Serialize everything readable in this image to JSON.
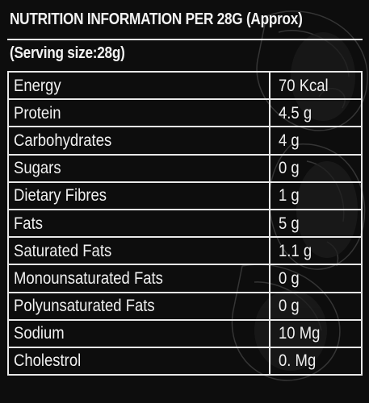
{
  "header": {
    "title": "NUTRITION INFORMATION PER 28G (Approx)",
    "serving": "(Serving size:28g)"
  },
  "rows": [
    {
      "name": "Energy",
      "value": "70 Kcal"
    },
    {
      "name": "Protein",
      "value": "4.5 g"
    },
    {
      "name": "Carbohydrates",
      "value": "4 g"
    },
    {
      "name": "Sugars",
      "value": "0 g"
    },
    {
      "name": "Dietary Fibres",
      "value": "1 g"
    },
    {
      "name": "Fats",
      "value": "5 g"
    },
    {
      "name": "Saturated Fats",
      "value": "1.1 g"
    },
    {
      "name": "Monounsaturated Fats",
      "value": "0 g"
    },
    {
      "name": "Polyunsaturated Fats",
      "value": "0 g"
    },
    {
      "name": "Sodium",
      "value": "10 Mg"
    },
    {
      "name": "Cholestrol",
      "value": "0. Mg"
    }
  ],
  "colors": {
    "background": "#0d0d0d",
    "text": "#f0f0f0",
    "border": "#e8e8e8"
  }
}
